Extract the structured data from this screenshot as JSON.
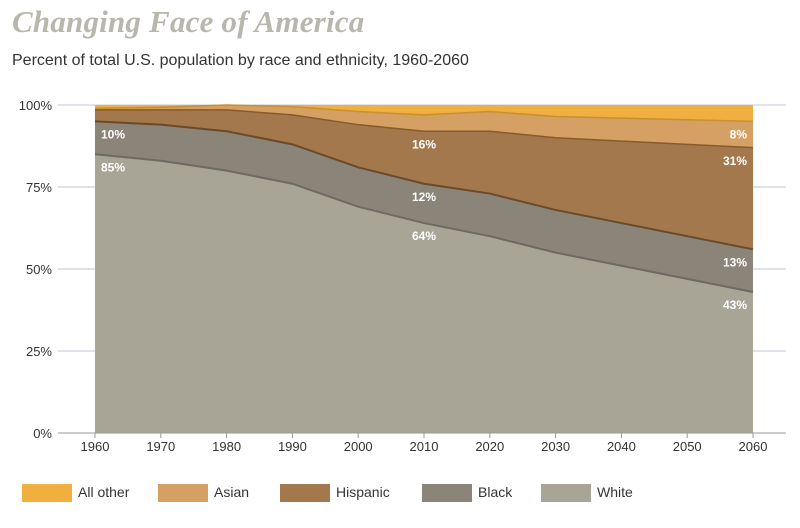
{
  "title": "Changing Face of America",
  "subtitle": "Percent of total U.S. population by race and ethnicity, 1960-2060",
  "colors": {
    "white": "#a8a597",
    "black": "#8a8479",
    "hispanic": "#a3784c",
    "asian": "#d4a063",
    "all_other": "#f0b040",
    "grid": "#c4c7d6"
  },
  "chart_data": {
    "type": "area",
    "stacked": true,
    "x": [
      1960,
      1970,
      1980,
      1990,
      2000,
      2010,
      2020,
      2030,
      2040,
      2050,
      2060
    ],
    "ylim": [
      0,
      100
    ],
    "y_ticks": [
      "0%",
      "25%",
      "50%",
      "75%",
      "100%"
    ],
    "series": [
      {
        "name": "White",
        "values": [
          85,
          83,
          80,
          76,
          69,
          64,
          60,
          55,
          51,
          47,
          43
        ]
      },
      {
        "name": "Black",
        "values": [
          10,
          11,
          12,
          12,
          12,
          12,
          13,
          13,
          13,
          13,
          13
        ]
      },
      {
        "name": "Hispanic",
        "values": [
          3.5,
          4.5,
          6.5,
          9,
          13,
          16,
          19,
          22,
          25,
          28,
          31
        ]
      },
      {
        "name": "Asian",
        "values": [
          0.5,
          0.8,
          1.5,
          2.5,
          4,
          5,
          6,
          6.5,
          7,
          7.5,
          8
        ]
      },
      {
        "name": "All other",
        "values": [
          1,
          0.7,
          0,
          0.5,
          2,
          3,
          2,
          3.5,
          4,
          4.5,
          5
        ]
      }
    ],
    "data_labels": [
      {
        "text": "10%",
        "x": 1960,
        "y": 91
      },
      {
        "text": "85%",
        "x": 1960,
        "y": 81
      },
      {
        "text": "16%",
        "x": 2010,
        "y": 88
      },
      {
        "text": "12%",
        "x": 2010,
        "y": 72
      },
      {
        "text": "64%",
        "x": 2010,
        "y": 60
      },
      {
        "text": "8%",
        "x": 2060,
        "y": 91
      },
      {
        "text": "31%",
        "x": 2060,
        "y": 83
      },
      {
        "text": "13%",
        "x": 2060,
        "y": 52
      },
      {
        "text": "43%",
        "x": 2060,
        "y": 39
      }
    ]
  },
  "legend": [
    {
      "label": "All other",
      "key": "all_other"
    },
    {
      "label": "Asian",
      "key": "asian"
    },
    {
      "label": "Hispanic",
      "key": "hispanic"
    },
    {
      "label": "Black",
      "key": "black"
    },
    {
      "label": "White",
      "key": "white"
    }
  ]
}
